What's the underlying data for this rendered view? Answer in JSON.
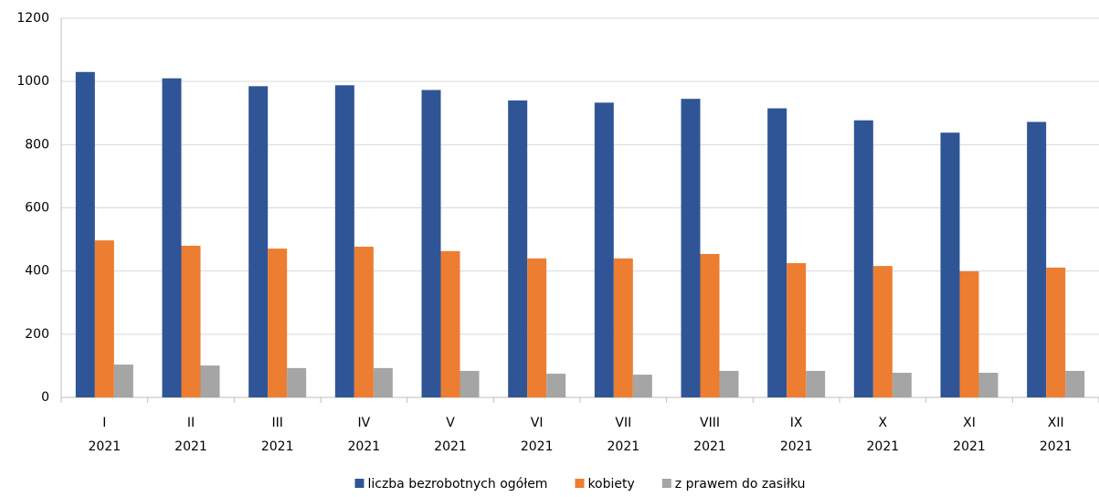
{
  "chart_data": {
    "type": "bar",
    "categories": [
      [
        "I",
        "2021"
      ],
      [
        "II",
        "2021"
      ],
      [
        "III",
        "2021"
      ],
      [
        "IV",
        "2021"
      ],
      [
        "V",
        "2021"
      ],
      [
        "VI",
        "2021"
      ],
      [
        "VII",
        "2021"
      ],
      [
        "VIII",
        "2021"
      ],
      [
        "IX",
        "2021"
      ],
      [
        "X",
        "2021"
      ],
      [
        "XI",
        "2021"
      ],
      [
        "XII",
        "2021"
      ]
    ],
    "series": [
      {
        "name": "liczba bezrobotnych ogółem",
        "color": "#2f5597",
        "values": [
          1030,
          1010,
          985,
          988,
          973,
          940,
          933,
          945,
          915,
          877,
          838,
          872
        ]
      },
      {
        "name": "kobiety",
        "color": "#ed7d31",
        "values": [
          497,
          480,
          471,
          477,
          463,
          440,
          440,
          454,
          425,
          416,
          399,
          411
        ]
      },
      {
        "name": "z prawem do zasiłku",
        "color": "#a5a5a5",
        "values": [
          104,
          101,
          93,
          93,
          84,
          75,
          72,
          84,
          84,
          78,
          78,
          84
        ]
      }
    ],
    "ylim": [
      0,
      1200
    ],
    "yticks": [
      0,
      200,
      400,
      600,
      800,
      1000,
      1200
    ],
    "grid": true,
    "legend": "bottom"
  }
}
